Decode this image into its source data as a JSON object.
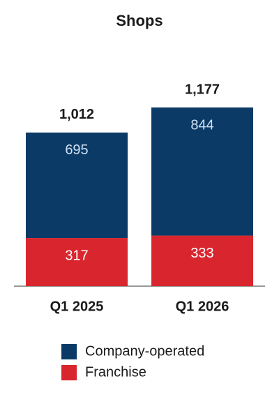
{
  "chart_data": {
    "type": "stacked_bar",
    "title": "Shops",
    "categories": [
      "Q1 2025",
      "Q1 2026"
    ],
    "series": [
      {
        "name": "Franchise",
        "color": "#d9262e",
        "values": [
          317,
          333
        ]
      },
      {
        "name": "Company-operated",
        "color": "#0b3a66",
        "values": [
          695,
          844
        ]
      }
    ],
    "totals": {
      "values": [
        1012,
        1177
      ],
      "value_labels": [
        "1,012",
        "1,177"
      ]
    }
  }
}
